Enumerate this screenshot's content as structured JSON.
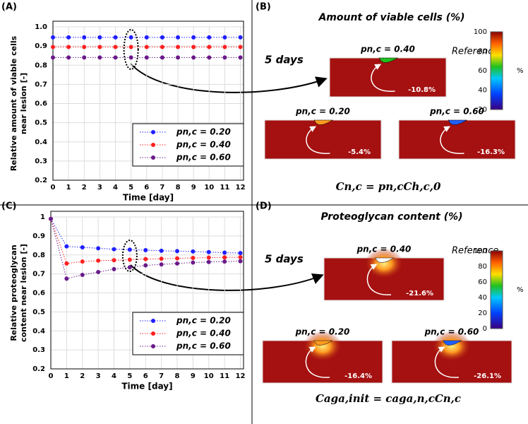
{
  "chart_data": [
    {
      "type": "line",
      "label": "(A)",
      "xlabel": "Time [day]",
      "ylabel": [
        "Relative amount of viable cells",
        "near lesion [-]"
      ],
      "x": [
        0,
        1,
        2,
        3,
        4,
        5,
        6,
        7,
        8,
        9,
        10,
        11,
        12
      ],
      "series": [
        {
          "name": "pn,c = 0.20",
          "color": "#1f1fff",
          "values": [
            0.945,
            0.945,
            0.945,
            0.945,
            0.945,
            0.945,
            0.945,
            0.945,
            0.945,
            0.945,
            0.945,
            0.945,
            0.945
          ]
        },
        {
          "name": "pn,c = 0.40",
          "color": "#ff2020",
          "values": [
            0.895,
            0.895,
            0.895,
            0.895,
            0.895,
            0.895,
            0.895,
            0.895,
            0.895,
            0.895,
            0.895,
            0.895,
            0.895
          ]
        },
        {
          "name": "pn,c = 0.60",
          "color": "#6a1a8a",
          "values": [
            0.84,
            0.84,
            0.84,
            0.84,
            0.84,
            0.84,
            0.84,
            0.84,
            0.84,
            0.84,
            0.84,
            0.84,
            0.84
          ]
        }
      ],
      "xlim": [
        0,
        12.2
      ],
      "xticks": [
        0,
        1,
        2,
        3,
        4,
        5,
        6,
        7,
        8,
        9,
        10,
        11,
        12
      ],
      "ylim": [
        0.2,
        1.0
      ],
      "yticks": [
        0.2,
        0.3,
        0.4,
        0.5,
        0.6,
        0.7,
        0.8,
        0.9,
        {
          "value": 1,
          "label": "1.0"
        }
      ],
      "grid": true,
      "legend": "lower right"
    },
    {
      "type": "line",
      "label": "(C)",
      "xlabel": "Time [day]",
      "ylabel": [
        "Relative proteoglycan",
        "content near lesion [-]"
      ],
      "x": [
        0,
        1,
        2,
        3,
        4,
        5,
        6,
        7,
        8,
        9,
        10,
        11,
        12
      ],
      "series": [
        {
          "name": "pn,c = 0.20",
          "color": "#1f1fff",
          "values": [
            0.99,
            0.845,
            0.84,
            0.835,
            0.83,
            0.828,
            0.825,
            0.822,
            0.82,
            0.818,
            0.815,
            0.812,
            0.81
          ]
        },
        {
          "name": "pn,c = 0.40",
          "color": "#ff2020",
          "values": [
            0.99,
            0.755,
            0.765,
            0.77,
            0.772,
            0.775,
            0.778,
            0.78,
            0.782,
            0.784,
            0.786,
            0.787,
            0.788
          ]
        },
        {
          "name": "pn,c = 0.60",
          "color": "#6a1a8a",
          "values": [
            0.99,
            0.675,
            0.695,
            0.71,
            0.725,
            0.735,
            0.745,
            0.75,
            0.755,
            0.76,
            0.763,
            0.765,
            0.767
          ]
        }
      ],
      "xlim": [
        0,
        12.2
      ],
      "xticks": [
        0,
        1,
        2,
        3,
        4,
        5,
        6,
        7,
        8,
        9,
        10,
        11,
        12
      ],
      "ylim": [
        0.2,
        1.0
      ],
      "yticks": [
        0.2,
        0.3,
        0.4,
        0.5,
        0.6,
        0.7,
        0.8,
        0.9,
        1
      ],
      "grid": true,
      "legend": "lower right"
    }
  ],
  "panel_b": {
    "label": "(B)",
    "title": "Amount of viable cells (%)",
    "time": "5 days",
    "reference": "Reference",
    "unit": "%",
    "colorbar_ticks": [
      100,
      80,
      60,
      40,
      20
    ],
    "cases": [
      {
        "label": "pn,c = 0.40",
        "change": "-10.8%"
      },
      {
        "label": "pn,c = 0.20",
        "change": "-5.4%"
      },
      {
        "label": "pn,c = 0.60",
        "change": "-16.3%"
      }
    ],
    "equation": "Cn,c = pn,cCh,c,0"
  },
  "panel_d": {
    "label": "(D)",
    "title": "Proteoglycan content (%)",
    "time": "5 days",
    "reference": "Reference",
    "unit": "%",
    "colorbar_ticks": [
      100,
      80,
      60,
      40,
      20,
      0
    ],
    "cases": [
      {
        "label": "pn,c = 0.40",
        "change": "-21.6%"
      },
      {
        "label": "pn,c = 0.20",
        "change": "-16.4%"
      },
      {
        "label": "pn,c = 0.60",
        "change": "-26.1%"
      }
    ],
    "equation": "Caga,init = caga,n,cCn,c"
  }
}
